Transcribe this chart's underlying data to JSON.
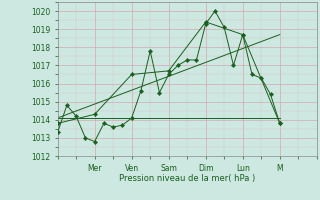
{
  "background_color": "#cce8e0",
  "grid_color_major": "#d4a8b0",
  "grid_color_minor": "#dcc0c4",
  "line_color": "#1a5e20",
  "ylim": [
    1012,
    1020.5
  ],
  "yticks": [
    1012,
    1013,
    1014,
    1015,
    1016,
    1017,
    1018,
    1019,
    1020
  ],
  "xlabel": "Pression niveau de la mer( hPa )",
  "xlim": [
    0,
    14
  ],
  "xtick_positions": [
    2.0,
    4.0,
    6.0,
    8.0,
    10.0,
    12.0,
    14.0
  ],
  "xtick_labels": [
    "Mer",
    "Ven",
    "Sam",
    "Dim",
    "Lun",
    "M",
    ""
  ],
  "series_jagged": {
    "x": [
      0,
      0.5,
      1.0,
      1.5,
      2.0,
      2.5,
      3.0,
      3.5,
      4.0,
      4.5,
      5.0,
      5.5,
      6.0,
      6.5,
      7.0,
      7.5,
      8.0,
      8.5,
      9.0,
      9.5,
      10.0,
      10.5,
      11.0,
      11.5,
      12.0
    ],
    "y": [
      1013.3,
      1014.8,
      1014.2,
      1013.0,
      1012.8,
      1013.8,
      1013.6,
      1013.7,
      1014.1,
      1015.6,
      1017.8,
      1015.5,
      1016.5,
      1017.0,
      1017.3,
      1017.3,
      1019.3,
      1020.0,
      1019.1,
      1017.0,
      1018.7,
      1016.5,
      1016.3,
      1015.4,
      1013.8
    ]
  },
  "series_smooth": {
    "x": [
      0,
      2.0,
      4.0,
      6.0,
      8.0,
      10.0,
      12.0
    ],
    "y": [
      1013.8,
      1014.3,
      1016.5,
      1016.7,
      1019.4,
      1018.7,
      1013.8
    ]
  },
  "series_trend_upper": {
    "x": [
      0,
      12.0
    ],
    "y": [
      1014.1,
      1018.7
    ]
  },
  "series_flat": {
    "x": [
      0,
      12.0
    ],
    "y": [
      1014.1,
      1014.1
    ]
  }
}
